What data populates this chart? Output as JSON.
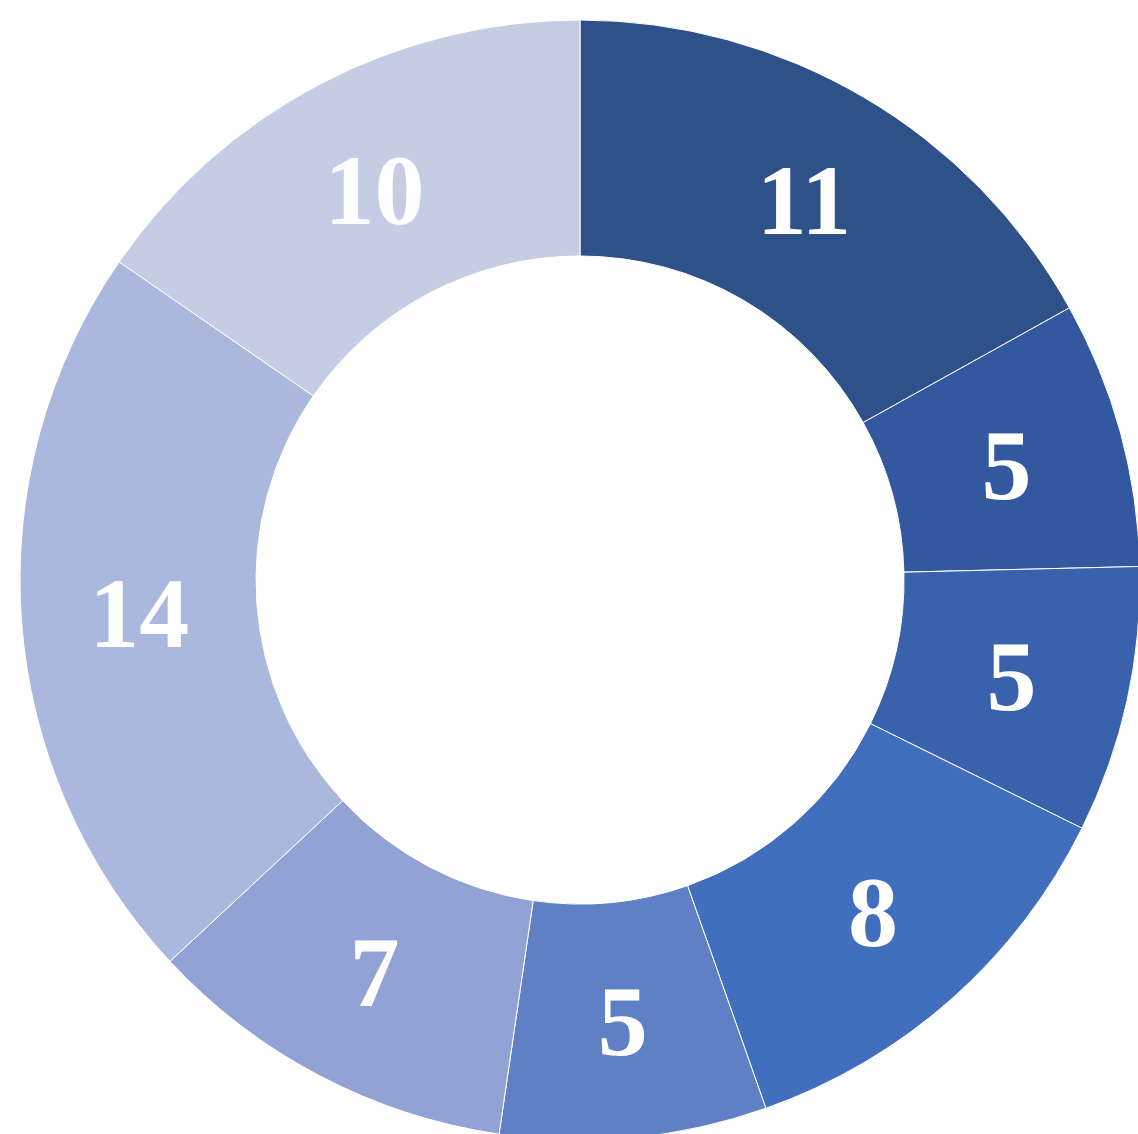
{
  "chart_data": {
    "type": "donut",
    "categories": [
      null,
      null,
      null,
      null,
      null,
      null,
      null,
      null
    ],
    "values": [
      11,
      5,
      5,
      8,
      5,
      7,
      14,
      10
    ],
    "colors": [
      "#2e5189",
      "#3358a0",
      "#3a62ac",
      "#416fbd",
      "#5f80c5",
      "#90a3d4",
      "#abb8de",
      "#c5cde5"
    ],
    "data_labels": true
  }
}
